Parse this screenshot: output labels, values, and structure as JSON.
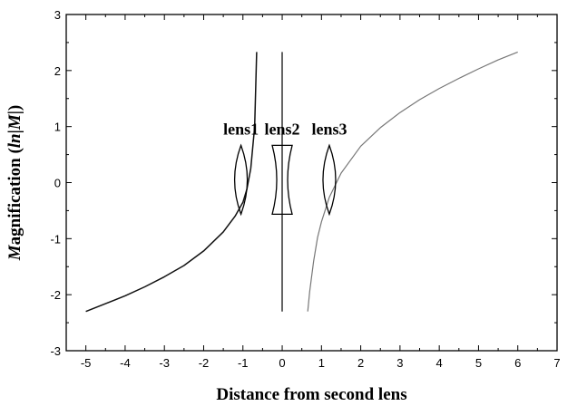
{
  "chart_data": {
    "type": "line",
    "xlabel": "Distance from second lens",
    "ylabel": "Magnification (ln|M|)",
    "xlim": [
      -5.5,
      7
    ],
    "ylim": [
      -3,
      3
    ],
    "xticks": [
      -5,
      -4,
      -3,
      -2,
      -1,
      0,
      1,
      2,
      3,
      4,
      5,
      6,
      7
    ],
    "yticks": [
      -3,
      -2,
      -1,
      0,
      1,
      2,
      3
    ],
    "grid": false,
    "series": [
      {
        "style": "solid-black",
        "x": [
          -5.0,
          -4.5,
          -4.0,
          -3.5,
          -3.0,
          -2.5,
          -2.0,
          -1.5,
          -1.2,
          -1.0,
          -0.9,
          -0.8,
          -0.7,
          -0.65
        ],
        "y": [
          -2.3,
          -2.16,
          -2.02,
          -1.86,
          -1.68,
          -1.48,
          -1.22,
          -0.88,
          -0.6,
          -0.35,
          -0.12,
          0.25,
          1.0,
          2.33
        ]
      },
      {
        "style": "vertical-black",
        "x": [
          0.0,
          0.0
        ],
        "y": [
          -2.3,
          2.33
        ]
      },
      {
        "style": "solid-gray",
        "x": [
          0.65,
          0.7,
          0.8,
          0.9,
          1.0,
          1.2,
          1.5,
          2.0,
          2.5,
          3.0,
          3.5,
          4.0,
          4.5,
          5.0,
          5.5,
          6.0
        ],
        "y": [
          -2.3,
          -1.95,
          -1.4,
          -0.98,
          -0.7,
          -0.26,
          0.17,
          0.65,
          0.98,
          1.25,
          1.48,
          1.68,
          1.86,
          2.03,
          2.19,
          2.33
        ]
      }
    ],
    "annotations": [
      {
        "text": "lens1",
        "type": "convex",
        "x": -1.05,
        "y": 0.05
      },
      {
        "text": "lens2",
        "type": "concave",
        "x": 0.0,
        "y": 0.05
      },
      {
        "text": "lens3",
        "type": "convex",
        "x": 1.2,
        "y": 0.05
      }
    ]
  }
}
